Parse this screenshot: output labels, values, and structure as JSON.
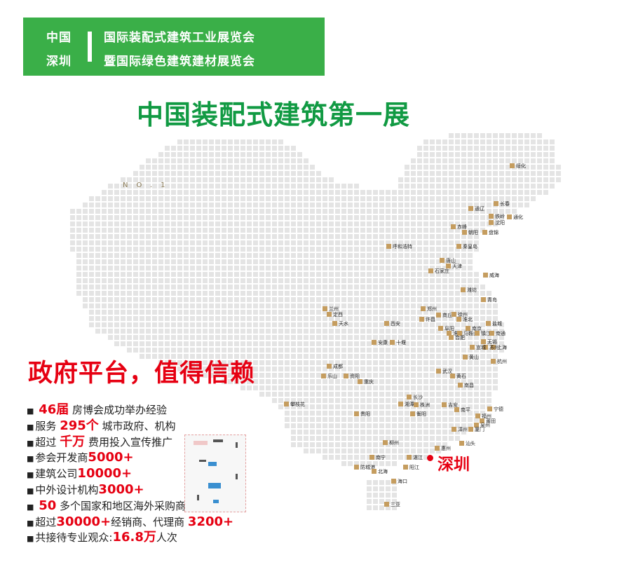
{
  "header": {
    "left_top": "中国",
    "left_bottom": "深圳",
    "right_top": "国际装配式建筑工业展览会",
    "right_bottom": "暨国际绿色建筑建材展览会",
    "background_color": "#3aaf48"
  },
  "main_title": "中国装配式建筑第一展",
  "map": {
    "watermark": "NO.1",
    "highlight_city": "深圳",
    "highlight_color": "#e60012",
    "marker_color": "#c59d5f",
    "cities": [
      "绥化",
      "长春",
      "通辽",
      "铁岭",
      "沈阳",
      "通化",
      "赤峰",
      "朝阳",
      "盘锦",
      "呼和浩特",
      "秦皇岛",
      "唐山",
      "天津",
      "石家庄",
      "威海",
      "潍坊",
      "青岛",
      "兰州",
      "定西",
      "天水",
      "西安",
      "郑州",
      "商丘",
      "徐州",
      "许昌",
      "淮北",
      "盐城",
      "阜阳",
      "南京",
      "淮南",
      "马鞍山",
      "镇江",
      "南通",
      "合肥",
      "无锡",
      "安康",
      "十堰",
      "上海",
      "苏州",
      "宣城",
      "成都",
      "乐山",
      "资阳",
      "重庆",
      "武汉",
      "黄石",
      "南昌",
      "长沙",
      "湘潭",
      "株洲",
      "衡阳",
      "吉安",
      "杭州",
      "黄山",
      "宁德",
      "南平",
      "福州",
      "莆田",
      "泉州",
      "漳州",
      "厦门",
      "汕头",
      "惠州",
      "柳州",
      "南宁",
      "湛江",
      "阳江",
      "防城港",
      "北海",
      "海口",
      "三亚",
      "贵阳",
      "攀枝花"
    ]
  },
  "slogan": "政府平台，值得信赖",
  "stats": [
    {
      "pre": " ",
      "num": "46届",
      "post": " 房博会成功举办经验"
    },
    {
      "pre": "服务 ",
      "num": "295个",
      "post": " 城市政府、机构"
    },
    {
      "pre": "超过 ",
      "num": "千万",
      "post": " 费用投入宣传推广"
    },
    {
      "pre": "参会开发商",
      "num": "5000+",
      "post": ""
    },
    {
      "pre": "建筑公司",
      "num": "10000+",
      "post": ""
    },
    {
      "pre": "中外设计机构",
      "num": "3000+",
      "post": ""
    },
    {
      "pre": " ",
      "num": "50",
      "post": " 多个国家和地区海外采购商"
    },
    {
      "pre": "超过",
      "num": "30000+",
      "post": "经销商、代理商 ",
      "num2": "3200+"
    },
    {
      "pre": "共接待专业观众:",
      "num": "16.8万",
      "post": "人次"
    }
  ],
  "colors": {
    "accent_red": "#e60012",
    "title_green": "#119a43"
  }
}
